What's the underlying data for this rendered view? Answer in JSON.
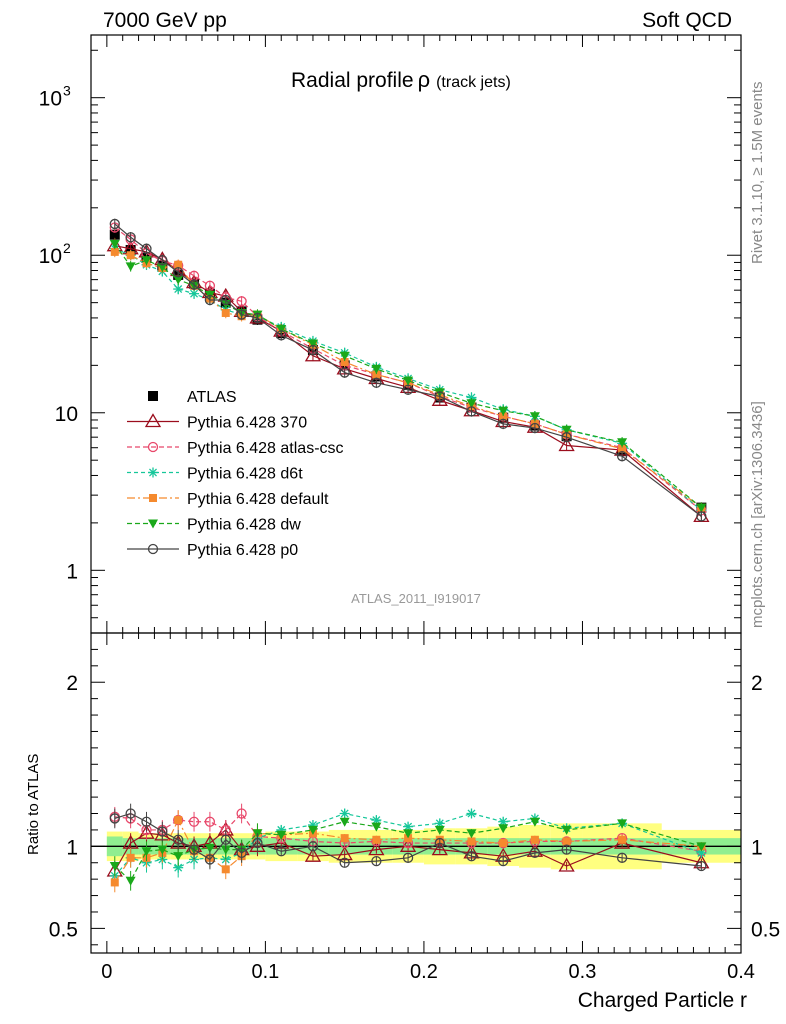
{
  "header": {
    "left": "7000 GeV pp",
    "right": "Soft QCD"
  },
  "title_main": "Radial profile",
  "title_symbol": "ρ",
  "title_sub": "(track jets)",
  "side_text_top": "Rivet 3.1.10, ≥ 1.5M events",
  "side_text_bottom": "mcplots.cern.ch [arXiv:1306.3436]",
  "watermark": "ATLAS_2011_I919017",
  "colors": {
    "ATLAS": "#000000",
    "Pythia 6.428 370": "#9b0d1d",
    "Pythia 6.428 atlas-csc": "#e8476a",
    "Pythia 6.428 d6t": "#16c79a",
    "Pythia 6.428 default": "#f58a2e",
    "Pythia 6.428 dw": "#1aa81a",
    "Pythia 6.428 p0": "#444444",
    "band_inner": "#90ee90",
    "band_outer": "#ffff80"
  },
  "chart_data": [
    {
      "type": "line",
      "panel": "main",
      "yscale": "log",
      "xlim": [
        -0.01,
        0.4
      ],
      "ylim": [
        0.4,
        2500
      ],
      "y_tick_labels": [
        {
          "value": 1000,
          "base": "10",
          "exp": "3"
        },
        {
          "value": 100,
          "base": "10",
          "exp": "2"
        },
        {
          "value": 10,
          "base": "10",
          "exp": ""
        },
        {
          "value": 1,
          "base": "1",
          "exp": ""
        }
      ],
      "legend_position": "center-left",
      "x": [
        0.005,
        0.015,
        0.025,
        0.035,
        0.045,
        0.055,
        0.065,
        0.075,
        0.085,
        0.095,
        0.11,
        0.13,
        0.15,
        0.17,
        0.19,
        0.21,
        0.23,
        0.25,
        0.27,
        0.29,
        0.325,
        0.375
      ],
      "series": [
        {
          "name": "ATLAS",
          "marker": "square",
          "values": [
            135,
            108,
            96,
            86,
            75,
            66,
            57,
            50,
            44,
            39,
            32,
            25,
            20,
            17,
            15,
            12.5,
            10.8,
            9.3,
            8.3,
            7.1,
            5.7,
            2.5
          ]
        },
        {
          "name": "Pythia 6.428 370",
          "marker": "triangle-open",
          "values": [
            115,
            110,
            105,
            94,
            80,
            67,
            58,
            55,
            44,
            40,
            33,
            23,
            19,
            16.5,
            14.5,
            12,
            10.3,
            8.8,
            8.1,
            6.2,
            5.8,
            2.2
          ]
        },
        {
          "name": "Pythia 6.428 atlas-csc",
          "marker": "circle-open",
          "values": [
            150,
            126,
            103,
            92,
            86,
            74,
            64,
            54,
            51,
            41,
            33,
            25.5,
            20,
            17.5,
            15.5,
            12.7,
            10.8,
            9.5,
            8.5,
            7.3,
            6,
            2.4
          ]
        },
        {
          "name": "Pythia 6.428 d6t",
          "marker": "star",
          "values": [
            110,
            100,
            87,
            79,
            61,
            57,
            52,
            45,
            42,
            41,
            35,
            28.5,
            24,
            19.5,
            16.5,
            14,
            12.5,
            10.5,
            9.5,
            7.8,
            6.4,
            2.4
          ]
        },
        {
          "name": "Pythia 6.428 default",
          "marker": "square-filled",
          "values": [
            105,
            100,
            89,
            83,
            87,
            64,
            53,
            43,
            41,
            42,
            34,
            27,
            21,
            17.5,
            15.5,
            13,
            11,
            9.5,
            8.5,
            7.3,
            5.9,
            2.5
          ]
        },
        {
          "name": "Pythia 6.428 dw",
          "marker": "triangle-down-filled",
          "values": [
            118,
            85,
            93,
            84,
            70,
            64,
            56,
            49,
            43,
            42,
            34,
            27.5,
            23,
            19,
            16,
            13.5,
            11.5,
            10.3,
            9.5,
            7.8,
            6.5,
            2.5
          ]
        },
        {
          "name": "Pythia 6.428 p0",
          "marker": "circle-open",
          "values": [
            158,
            130,
            110,
            93,
            78,
            65,
            52,
            52,
            42,
            40,
            31,
            25,
            18,
            15.5,
            14,
            12.7,
            10.2,
            8.5,
            8,
            7,
            5.3,
            2.2
          ]
        }
      ]
    },
    {
      "type": "line",
      "panel": "ratio",
      "ylabel": "Ratio to ATLAS",
      "xlabel": "Charged Particle r",
      "xlim": [
        -0.01,
        0.4
      ],
      "ylim": [
        0.35,
        2.3
      ],
      "y_tick_labels": [
        "0.5",
        "1",
        "2"
      ],
      "x_tick_labels": [
        "0",
        "0.1",
        "0.2",
        "0.3",
        "0.4"
      ],
      "bands": [
        {
          "edges": [
            0,
            0.01,
            0.02,
            0.03,
            0.04,
            0.05,
            0.06,
            0.07,
            0.08,
            0.09,
            0.1,
            0.12,
            0.14,
            0.16,
            0.18,
            0.2,
            0.22,
            0.24,
            0.26,
            0.28,
            0.3,
            0.35,
            0.4
          ],
          "inner_half": [
            0.06,
            0.05,
            0.05,
            0.05,
            0.05,
            0.05,
            0.05,
            0.05,
            0.05,
            0.05,
            0.05,
            0.05,
            0.05,
            0.05,
            0.05,
            0.05,
            0.05,
            0.05,
            0.05,
            0.05,
            0.05,
            0.05
          ],
          "outer_half": [
            0.09,
            0.09,
            0.08,
            0.08,
            0.08,
            0.08,
            0.08,
            0.08,
            0.08,
            0.08,
            0.09,
            0.09,
            0.1,
            0.1,
            0.1,
            0.11,
            0.11,
            0.12,
            0.13,
            0.14,
            0.14,
            0.1
          ]
        }
      ],
      "x": [
        0.005,
        0.015,
        0.025,
        0.035,
        0.045,
        0.055,
        0.065,
        0.075,
        0.085,
        0.095,
        0.11,
        0.13,
        0.15,
        0.17,
        0.19,
        0.21,
        0.23,
        0.25,
        0.27,
        0.29,
        0.325,
        0.375
      ],
      "series": [
        {
          "name": "Pythia 6.428 370",
          "values": [
            0.85,
            1.02,
            1.08,
            1.07,
            1.02,
            1.0,
            1.02,
            1.1,
            0.98,
            1.0,
            1.02,
            0.94,
            0.95,
            0.98,
            1.0,
            0.98,
            0.96,
            0.94,
            0.97,
            0.88,
            1.02,
            0.9
          ]
        },
        {
          "name": "Pythia 6.428 atlas-csc",
          "values": [
            1.18,
            1.17,
            1.1,
            1.1,
            1.16,
            1.15,
            1.15,
            1.1,
            1.2,
            1.06,
            1.05,
            1.03,
            1.02,
            1.03,
            1.02,
            1.02,
            1.02,
            1.02,
            1.03,
            1.03,
            1.05,
            0.97
          ]
        },
        {
          "name": "Pythia 6.428 d6t",
          "values": [
            0.82,
            0.93,
            0.9,
            0.92,
            0.87,
            0.92,
            0.93,
            0.92,
            0.96,
            1.05,
            1.1,
            1.13,
            1.2,
            1.16,
            1.12,
            1.14,
            1.2,
            1.15,
            1.17,
            1.11,
            1.14,
            0.96
          ]
        },
        {
          "name": "Pythia 6.428 default",
          "values": [
            0.78,
            0.93,
            0.93,
            0.96,
            1.16,
            0.97,
            0.93,
            0.86,
            0.94,
            1.08,
            1.07,
            1.08,
            1.05,
            1.04,
            1.05,
            1.04,
            1.03,
            1.02,
            1.04,
            1.03,
            1.04,
            1.0
          ]
        },
        {
          "name": "Pythia 6.428 dw",
          "values": [
            0.88,
            0.79,
            0.97,
            0.98,
            0.94,
            0.98,
            0.99,
            0.98,
            0.98,
            1.08,
            1.07,
            1.1,
            1.15,
            1.12,
            1.08,
            1.1,
            1.08,
            1.11,
            1.15,
            1.1,
            1.14,
            1.0
          ]
        },
        {
          "name": "Pythia 6.428 p0",
          "values": [
            1.17,
            1.2,
            1.15,
            1.09,
            1.04,
            0.98,
            0.92,
            1.04,
            0.96,
            1.02,
            0.97,
            1.0,
            0.9,
            0.91,
            0.93,
            1.02,
            0.94,
            0.91,
            0.96,
            0.98,
            0.93,
            0.88
          ]
        }
      ]
    }
  ]
}
